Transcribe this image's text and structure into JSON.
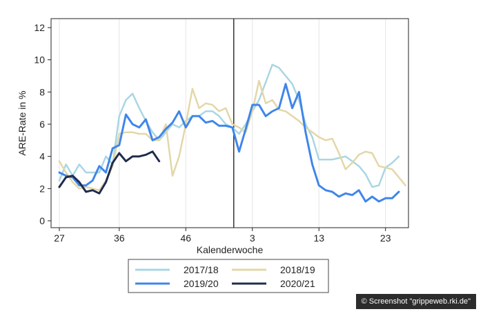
{
  "chart_data": {
    "type": "line",
    "xlabel": "Kalenderwoche",
    "ylabel": "ARE-Rate in %",
    "ylim": [
      0,
      12
    ],
    "yticks": [
      0,
      2,
      4,
      6,
      8,
      10,
      12
    ],
    "x_tick_labels": [
      "27",
      "36",
      "46",
      "3",
      "13",
      "23"
    ],
    "x_tick_index": [
      0,
      9,
      19,
      29,
      39,
      49
    ],
    "season_break_index": 26,
    "grid": "vertical",
    "legend_position": "bottom",
    "series": [
      {
        "name": "2017/18",
        "color": "#a9d6e3",
        "values": [
          2.5,
          3.5,
          2.8,
          3.5,
          3.0,
          3.0,
          3.0,
          4.0,
          3.5,
          6.5,
          7.5,
          7.9,
          7.0,
          6.2,
          5.5,
          5.0,
          5.5,
          6.0,
          5.8,
          6.2,
          6.5,
          6.5,
          6.8,
          6.8,
          6.5,
          6.0,
          5.8,
          5.4,
          6.0,
          6.8,
          7.5,
          8.6,
          9.7,
          9.5,
          9.0,
          8.5,
          7.5,
          6.0,
          5.2,
          3.8,
          3.8,
          3.8,
          3.9,
          4.0,
          3.7,
          3.4,
          2.9,
          2.1,
          2.2,
          3.3,
          3.6,
          4.0
        ]
      },
      {
        "name": "2018/19",
        "color": "#e3d7a8",
        "values": [
          3.7,
          3.0,
          2.4,
          2.0,
          2.1,
          2.0,
          1.9,
          2.5,
          3.4,
          5.4,
          5.5,
          5.5,
          5.4,
          5.4,
          5.0,
          5.0,
          6.0,
          2.8,
          4.0,
          6.0,
          8.2,
          7.0,
          7.3,
          7.2,
          6.8,
          7.0,
          6.0,
          5.8,
          5.5,
          6.8,
          8.7,
          7.3,
          7.5,
          6.9,
          6.8,
          6.5,
          6.2,
          5.8,
          5.5,
          5.2,
          5.0,
          5.1,
          4.2,
          3.2,
          3.6,
          4.1,
          4.3,
          4.2,
          3.4,
          3.3,
          3.2,
          2.7,
          2.2
        ]
      },
      {
        "name": "2019/20",
        "color": "#3f86ea",
        "values": [
          3.0,
          2.8,
          2.7,
          2.2,
          2.2,
          2.5,
          3.4,
          3.0,
          4.5,
          4.7,
          6.6,
          6.0,
          5.8,
          6.3,
          5.0,
          5.2,
          5.7,
          6.1,
          6.8,
          5.8,
          6.5,
          6.5,
          6.1,
          6.2,
          5.9,
          5.9,
          5.8,
          4.3,
          5.7,
          7.2,
          7.2,
          6.5,
          6.8,
          7.0,
          8.5,
          7.0,
          8.0,
          5.5,
          3.5,
          2.2,
          1.9,
          1.8,
          1.5,
          1.7,
          1.6,
          1.9,
          1.2,
          1.5,
          1.2,
          1.4,
          1.4,
          1.8
        ]
      },
      {
        "name": "2020/21",
        "color": "#1f2c4c",
        "values": [
          2.1,
          2.7,
          2.8,
          2.4,
          1.8,
          1.9,
          1.7,
          2.4,
          3.6,
          4.2,
          3.7,
          4.0,
          4.0,
          4.1,
          4.3,
          3.7
        ]
      }
    ]
  },
  "credit": "© Screenshot \"grippeweb.rki.de\""
}
